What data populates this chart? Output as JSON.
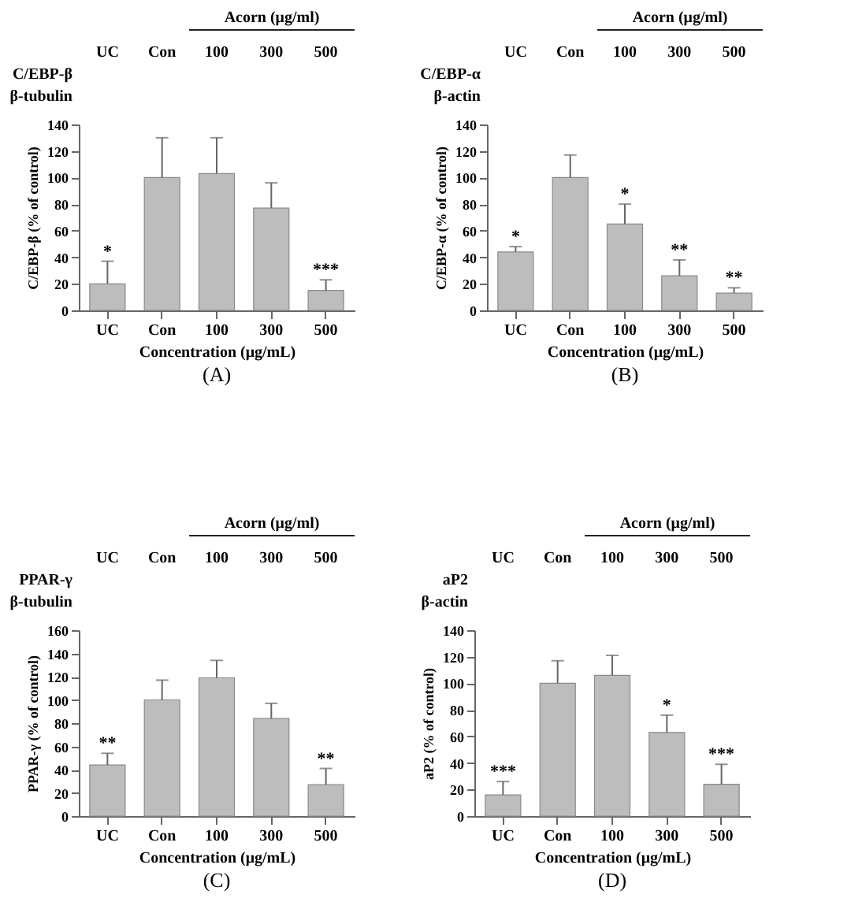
{
  "chart_data": [
    {
      "type": "bar",
      "title": "(A)",
      "xlabel": "Concentration  (μg/mL)",
      "ylabel": "C/EBP-β (% of control)",
      "categories": [
        "UC",
        "Con",
        "100",
        "300",
        "500"
      ],
      "values": [
        20,
        100,
        103,
        77,
        15
      ],
      "errors": [
        17,
        30,
        27,
        19,
        8
      ],
      "color": "#bdbdbd",
      "ylim": [
        0,
        140
      ],
      "yticks": [
        0,
        20,
        40,
        60,
        80,
        100,
        120,
        140
      ],
      "grid": false,
      "annotations": [
        "Acorn (μg/ml)",
        "C/EBP-β",
        "β-tubulin",
        {
          "text": "*",
          "x": "UC",
          "y": 37
        },
        {
          "text": "***",
          "x": "500",
          "y": 23
        }
      ]
    },
    {
      "type": "bar",
      "title": "(B)",
      "xlabel": "Concentration  (μg/mL)",
      "ylabel": "C/EBP-α (% of control)",
      "categories": [
        "UC",
        "Con",
        "100",
        "300",
        "500"
      ],
      "values": [
        44,
        100,
        65,
        26,
        13
      ],
      "errors": [
        4,
        17,
        15,
        12,
        4
      ],
      "color": "#bdbdbd",
      "ylim": [
        0,
        140
      ],
      "yticks": [
        0,
        20,
        40,
        60,
        80,
        100,
        120,
        140
      ],
      "grid": false,
      "annotations": [
        "Acorn (μg/ml)",
        "C/EBP-α",
        "β-actin",
        {
          "text": "*",
          "x": "UC",
          "y": 48
        },
        {
          "text": "*",
          "x": "100",
          "y": 80
        },
        {
          "text": "**",
          "x": "300",
          "y": 38
        },
        {
          "text": "**",
          "x": "500",
          "y": 17
        }
      ]
    },
    {
      "type": "bar",
      "title": "(C)",
      "xlabel": "Concentration  (μg/mL)",
      "ylabel": "PPAR-γ (% of control)",
      "categories": [
        "UC",
        "Con",
        "100",
        "300",
        "500"
      ],
      "values": [
        44,
        100,
        119,
        84,
        27
      ],
      "errors": [
        10,
        17,
        15,
        13,
        14
      ],
      "color": "#bdbdbd",
      "ylim": [
        0,
        160
      ],
      "yticks": [
        0,
        20,
        40,
        60,
        80,
        100,
        120,
        140,
        160
      ],
      "grid": false,
      "annotations": [
        "Acorn (μg/ml)",
        "PPAR-γ",
        "β-tubulin",
        {
          "text": "**",
          "x": "UC",
          "y": 54
        },
        {
          "text": "**",
          "x": "500",
          "y": 41
        }
      ]
    },
    {
      "type": "bar",
      "title": "(D)",
      "xlabel": "Concentration  (μg/mL)",
      "ylabel": "aP2 (% of control)",
      "categories": [
        "UC",
        "Con",
        "100",
        "300",
        "500"
      ],
      "values": [
        16,
        100,
        106,
        63,
        24
      ],
      "errors": [
        10,
        17,
        15,
        13,
        15
      ],
      "color": "#bdbdbd",
      "ylim": [
        0,
        140
      ],
      "yticks": [
        0,
        20,
        40,
        60,
        80,
        100,
        120,
        140
      ],
      "grid": false,
      "annotations": [
        "Acorn (μg/ml)",
        "aP2",
        "β-actin",
        {
          "text": "***",
          "x": "UC",
          "y": 26
        },
        {
          "text": "*",
          "x": "300",
          "y": 76
        },
        {
          "text": "***",
          "x": "500",
          "y": 39
        }
      ]
    }
  ]
}
